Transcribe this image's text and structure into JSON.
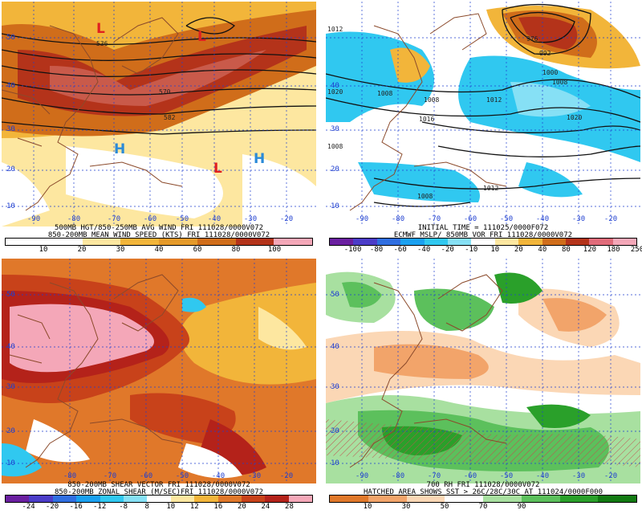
{
  "colors": {
    "grid": "#1f3fd0",
    "coast": "#8b4a2b",
    "contour": "#111111"
  },
  "panels": [
    {
      "id": "wind",
      "title_line1": "500MB HGT/850-250MB AVG WIND FRI 111028/0000V072",
      "title_line2": "850-200MB MEAN WIND SPEED (KTS) FRI 111028/0000V072",
      "colorbar_labels": [
        "10",
        "20",
        "30",
        "40",
        "60",
        "80",
        "100"
      ],
      "colorbar_colors": [
        "#ffffff",
        "#ffffff",
        "#fde7a0",
        "#f2b53a",
        "#e59a2a",
        "#d06d1a",
        "#b4331a",
        "#f4a7b8"
      ],
      "lat_labels": [
        "50",
        "40",
        "30",
        "20",
        "10"
      ],
      "lon_labels": [
        "-90",
        "-80",
        "-70",
        "-60",
        "-50",
        "-40",
        "-30",
        "-20"
      ],
      "contour_labels": [
        "536",
        "570",
        "582"
      ],
      "pressure_centers": [
        {
          "label": "L",
          "kind": "low"
        },
        {
          "label": "L",
          "kind": "low"
        },
        {
          "label": "H",
          "kind": "high"
        },
        {
          "label": "L",
          "kind": "low"
        },
        {
          "label": "H",
          "kind": "high"
        }
      ]
    },
    {
      "id": "vort",
      "title_line1": "INITIAL TIME = 111025/0000F072",
      "title_line2": "ECMWF MSLP/ 850MB VOR FRI 111028/0000V072",
      "colorbar_labels": [
        "-100",
        "-80",
        "-60",
        "-40",
        "-20",
        "-10",
        "10",
        "20",
        "40",
        "80",
        "120",
        "180",
        "250"
      ],
      "colorbar_colors": [
        "#6a1fa0",
        "#4b3cc8",
        "#2f6ee0",
        "#1aa0f0",
        "#30c8f0",
        "#86e0f5",
        "#ffffff",
        "#fde7a0",
        "#f2b53a",
        "#d06d1a",
        "#b4331a",
        "#e06b7a",
        "#f4a7b8"
      ],
      "lat_labels": [
        "40",
        "30",
        "20",
        "10"
      ],
      "lon_labels": [
        "-90",
        "-80",
        "-70",
        "-60",
        "-50",
        "-40",
        "-30",
        "-20"
      ],
      "contour_labels": [
        "1012",
        "1008",
        "1016",
        "1012",
        "1008",
        "1020",
        "1008",
        "1012",
        "1020",
        "1008",
        "976",
        "992",
        "1000",
        "1008"
      ]
    },
    {
      "id": "shear",
      "title_line1": "850-200MB SHEAR VECTOR FRI 111028/0000V072",
      "title_line2": "850-200MB ZONAL SHEAR (M/SEC)FRI 111028/0000V072",
      "colorbar_labels": [
        "-24",
        "-20",
        "-16",
        "-12",
        "-8",
        "8",
        "10",
        "12",
        "16",
        "20",
        "24",
        "28"
      ],
      "colorbar_colors": [
        "#6a1fa0",
        "#4b3cc8",
        "#2f6ee0",
        "#1aa0f0",
        "#30c8f0",
        "#86e0f5",
        "#ffffff",
        "#fde7a0",
        "#f2b53a",
        "#e0782a",
        "#c8421a",
        "#b4221a",
        "#f4a7b8"
      ],
      "lat_labels": [
        "50",
        "40",
        "30",
        "20",
        "10"
      ],
      "lon_labels": [
        "-80",
        "-70",
        "-60",
        "-50",
        "-40",
        "-30",
        "-20"
      ]
    },
    {
      "id": "rh",
      "title_line1": "700 RH FRI 111028/0000V072",
      "title_line2": "HATCHED AREA SHOWS SST > 26C/28C/30C AT 111024/0000F000",
      "colorbar_labels": [
        "10",
        "30",
        "50",
        "70",
        "90"
      ],
      "colorbar_colors": [
        "#e0782a",
        "#f2a46a",
        "#fbd7b5",
        "#ffffff",
        "#a8e0a0",
        "#5cc05c",
        "#2aa02a",
        "#127a12"
      ],
      "lat_labels": [
        "50",
        "40",
        "30",
        "20",
        "10"
      ],
      "lon_labels": [
        "-90",
        "-80",
        "-70",
        "-60",
        "-50",
        "-40",
        "-30",
        "-20"
      ]
    }
  ]
}
